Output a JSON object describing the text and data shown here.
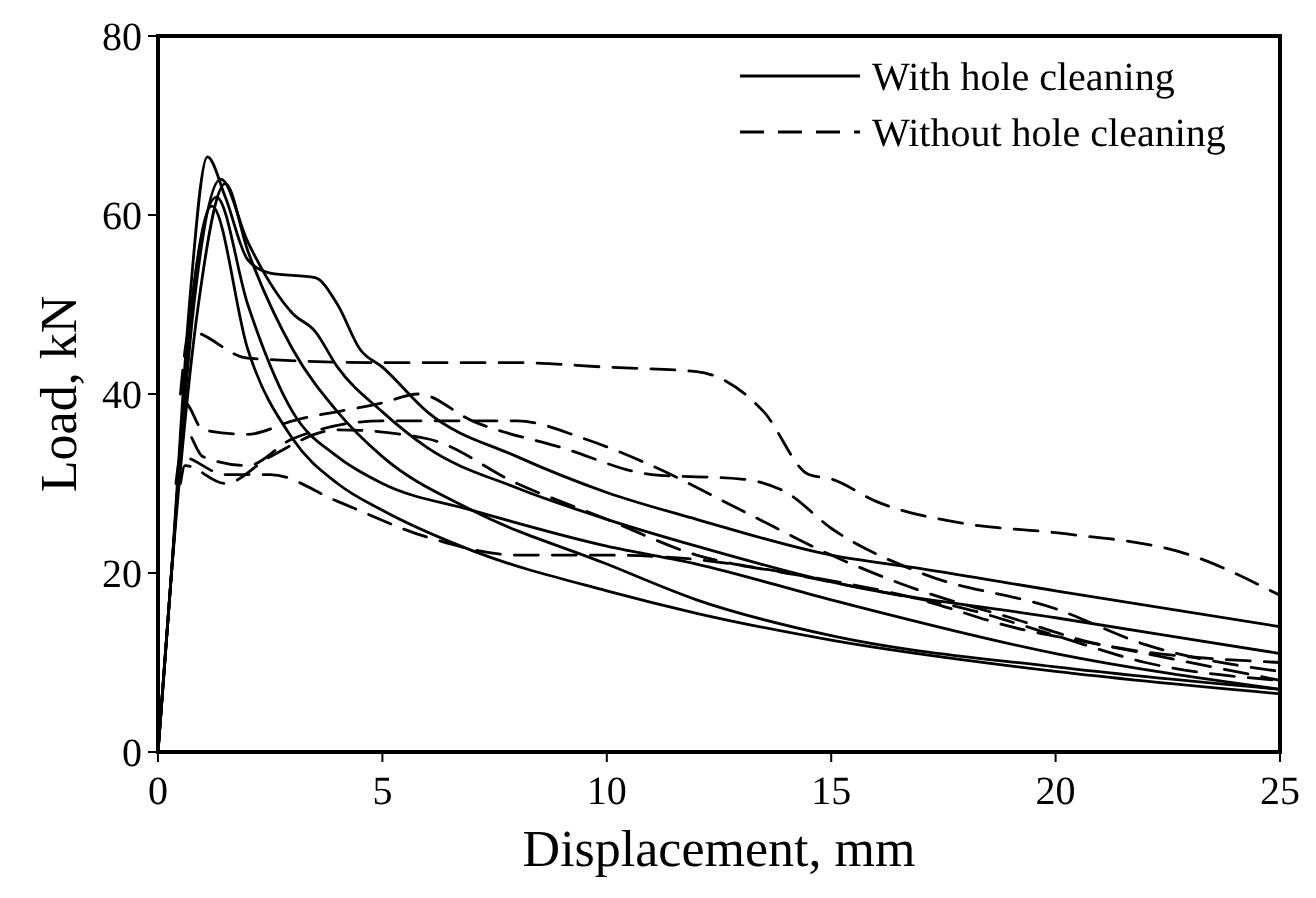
{
  "chart_data": {
    "type": "line",
    "xlabel": "Displacement, mm",
    "ylabel": "Load, kN",
    "xlim": [
      0,
      25
    ],
    "ylim": [
      0,
      80
    ],
    "xticks": [
      0,
      5,
      10,
      15,
      20,
      25
    ],
    "yticks": [
      0,
      20,
      40,
      60,
      80
    ],
    "grid": false,
    "legend": "top right",
    "series": [
      {
        "name": "With hole cleaning",
        "color": "#000000",
        "line_style": "solid",
        "x": [
          0,
          0.3,
          0.7,
          1.1,
          1.5,
          2,
          2.5,
          3.5,
          4,
          4.5,
          5,
          6,
          8,
          10,
          12,
          15,
          17,
          20,
          25
        ],
        "values": [
          0,
          20,
          50,
          66.5,
          62,
          55,
          53.5,
          53,
          50,
          45,
          43,
          38,
          33,
          29,
          26,
          22,
          20.5,
          18,
          14
        ]
      },
      {
        "color": "#000000",
        "line_style": "solid",
        "x": [
          0,
          0.3,
          0.8,
          1.4,
          2,
          3,
          3.5,
          4,
          5,
          6,
          8,
          10,
          12,
          15,
          20,
          25
        ],
        "values": [
          0,
          20,
          50,
          64,
          57,
          49,
          47,
          43,
          38,
          34,
          29.5,
          26,
          23,
          19,
          15,
          11
        ]
      },
      {
        "color": "#000000",
        "line_style": "solid",
        "x": [
          0,
          0.3,
          0.8,
          1.3,
          2,
          3,
          4,
          5,
          7,
          10,
          12,
          15,
          20,
          25
        ],
        "values": [
          0,
          20,
          52,
          62,
          50,
          38,
          33,
          30,
          27,
          23,
          21,
          17,
          11,
          7
        ]
      },
      {
        "color": "#000000",
        "line_style": "solid",
        "x": [
          0,
          0.3,
          0.8,
          1.2,
          2,
          3,
          4,
          5,
          7,
          10,
          12,
          15,
          20,
          25
        ],
        "values": [
          0,
          20,
          52,
          61,
          45,
          35,
          30,
          27,
          22.5,
          18,
          15.5,
          12.5,
          9,
          6.5
        ]
      },
      {
        "color": "#000000",
        "line_style": "solid",
        "x": [
          0,
          0.3,
          0.9,
          1.5,
          2,
          3,
          4,
          5,
          7,
          10,
          12,
          15,
          20,
          25
        ],
        "values": [
          0,
          20,
          50,
          63.5,
          56,
          45,
          38,
          33,
          27,
          21,
          17,
          13,
          9.5,
          7
        ]
      },
      {
        "name": "Without hole cleaning",
        "color": "#000000",
        "line_style": "dashed",
        "x": [
          0.5,
          0.7,
          2,
          5,
          8,
          10,
          12,
          13.5,
          14.5,
          15,
          16,
          18,
          20,
          23,
          25
        ],
        "values": [
          40,
          47,
          44,
          43.5,
          43.5,
          43,
          42.5,
          38,
          31,
          30.5,
          28,
          25.5,
          24.5,
          22,
          17.5
        ]
      },
      {
        "color": "#000000",
        "line_style": "dashed",
        "x": [
          0.5,
          0.6,
          1,
          2,
          3,
          5,
          5.8,
          7,
          9,
          11,
          13,
          14,
          15,
          17,
          20,
          22,
          25
        ],
        "values": [
          35,
          39,
          36,
          35.5,
          37,
          39,
          40,
          37,
          34,
          31,
          30.5,
          29,
          25,
          20,
          16,
          12,
          9
        ]
      },
      {
        "color": "#000000",
        "line_style": "dashed",
        "x": [
          0.5,
          0.6,
          1,
          2,
          3,
          5,
          8,
          9.5,
          11,
          13,
          15,
          17,
          19,
          21,
          25
        ],
        "values": [
          33,
          36,
          33,
          32,
          35,
          37,
          37,
          35,
          32,
          27,
          22,
          18,
          15,
          12,
          10
        ]
      },
      {
        "color": "#000000",
        "line_style": "dashed",
        "x": [
          0.5,
          0.6,
          1.5,
          2.5,
          4,
          6,
          8,
          10,
          12,
          14,
          16,
          18,
          20,
          22,
          25
        ],
        "values": [
          30,
          32,
          30,
          33,
          36,
          35,
          30,
          26,
          22,
          20,
          18,
          16,
          13,
          10,
          8
        ]
      },
      {
        "color": "#000000",
        "line_style": "dashed",
        "x": [
          0.4,
          0.5,
          1.5,
          2.5,
          4,
          6,
          8,
          10,
          12,
          14,
          17,
          19,
          21,
          25
        ],
        "values": [
          30,
          33,
          31,
          31,
          28,
          24,
          22,
          22,
          21.5,
          20,
          17,
          14,
          12,
          8
        ]
      }
    ]
  }
}
